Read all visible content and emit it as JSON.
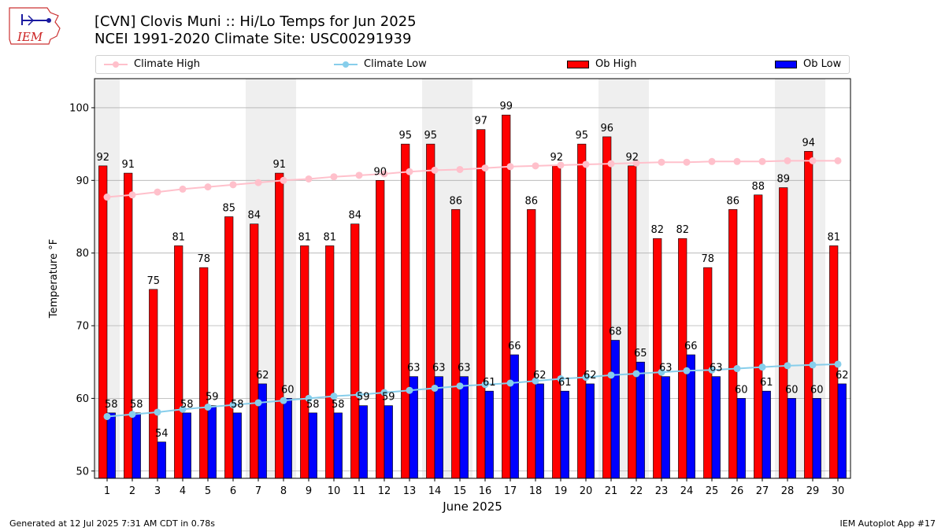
{
  "header": {
    "title_line1": "[CVN] Clovis Muni :: Hi/Lo Temps for Jun 2025",
    "title_line2": "NCEI 1991-2020 Climate Site: USC00291939",
    "logo_text": "IEM"
  },
  "footer": {
    "generated": "Generated at 12 Jul 2025 7:31 AM CDT in 0.78s",
    "app": "IEM Autoplot App #17"
  },
  "colors": {
    "ob_high": "#ff0000",
    "ob_low": "#0000ff",
    "climate_high": "#ffc0cb",
    "climate_low": "#87ceeb",
    "weekend_shade": "#efefef",
    "grid": "#b0b0b0"
  },
  "chart_data": {
    "type": "bar",
    "xlabel": "June 2025",
    "ylabel": "Temperature °F",
    "ylim": [
      49,
      104
    ],
    "yticks": [
      50,
      60,
      70,
      80,
      90,
      100
    ],
    "grid": "horizontal",
    "legend_position": "top",
    "shaded_days": [
      1,
      7,
      8,
      14,
      15,
      21,
      22,
      28,
      29
    ],
    "categories": [
      "1",
      "2",
      "3",
      "4",
      "5",
      "6",
      "7",
      "8",
      "9",
      "10",
      "11",
      "12",
      "13",
      "14",
      "15",
      "16",
      "17",
      "18",
      "19",
      "20",
      "21",
      "22",
      "23",
      "24",
      "25",
      "26",
      "27",
      "28",
      "29",
      "30"
    ],
    "series": [
      {
        "name": "Ob High",
        "kind": "bar",
        "values": [
          92,
          91,
          75,
          81,
          78,
          85,
          84,
          91,
          81,
          81,
          84,
          90,
          95,
          95,
          86,
          97,
          99,
          86,
          92,
          95,
          96,
          92,
          82,
          82,
          78,
          86,
          88,
          89,
          94,
          81
        ]
      },
      {
        "name": "Ob Low",
        "kind": "bar",
        "values": [
          58,
          58,
          54,
          58,
          59,
          58,
          62,
          60,
          58,
          58,
          59,
          59,
          63,
          63,
          63,
          61,
          66,
          62,
          61,
          62,
          68,
          65,
          63,
          66,
          63,
          60,
          61,
          60,
          60,
          62
        ]
      },
      {
        "name": "Climate High",
        "kind": "line",
        "values": [
          87.7,
          88.0,
          88.4,
          88.8,
          89.1,
          89.4,
          89.7,
          90.0,
          90.2,
          90.5,
          90.7,
          90.9,
          91.2,
          91.4,
          91.5,
          91.7,
          91.9,
          92.0,
          92.1,
          92.2,
          92.3,
          92.4,
          92.5,
          92.5,
          92.6,
          92.6,
          92.6,
          92.7,
          92.7,
          92.7
        ]
      },
      {
        "name": "Climate Low",
        "kind": "line",
        "values": [
          57.5,
          57.8,
          58.1,
          58.5,
          58.8,
          59.1,
          59.4,
          59.7,
          60.0,
          60.3,
          60.5,
          60.8,
          61.1,
          61.4,
          61.7,
          61.9,
          62.1,
          62.4,
          62.7,
          62.9,
          63.2,
          63.4,
          63.6,
          63.8,
          63.9,
          64.1,
          64.3,
          64.5,
          64.6,
          64.7
        ]
      }
    ]
  }
}
